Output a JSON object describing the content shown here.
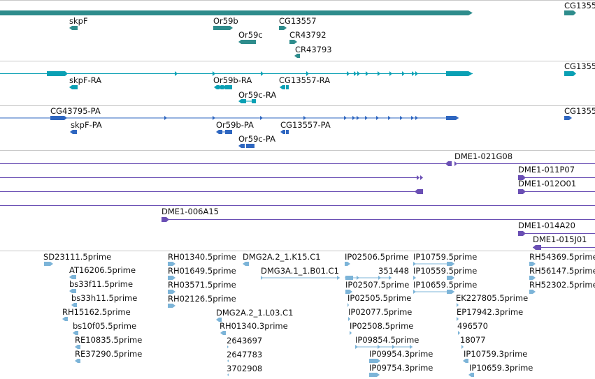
{
  "colors": {
    "gene": "#2e8c8c",
    "mrna": "#0aa0b4",
    "cds": "#2e66c0",
    "bac": "#6a4fb4",
    "est": "#7cb4d8",
    "separator": "#c0c0c0"
  },
  "tracks": {
    "genes": {
      "labels": [
        "skpF",
        "Or59b",
        "Or59c",
        "CG13557",
        "CR43792",
        "CR43793",
        "CG1355"
      ]
    },
    "mrna": {
      "labels": [
        "skpF-RA",
        "Or59b-RA",
        "Or59c-RA",
        "CG13557-RA",
        "CG1355"
      ]
    },
    "cds": {
      "labels": [
        "CG43795-PA",
        "skpF-PA",
        "Or59b-PA",
        "CG13557-PA",
        "Or59c-PA",
        "CG1355"
      ]
    },
    "bac": {
      "labels": [
        "DME1-021G08",
        "DME1-011P07",
        "DME1-012O01",
        "DME1-006A15",
        "DME1-014A20",
        "DME1-015J01"
      ]
    },
    "est": {
      "labels": [
        "SD23111.5prime",
        "AT16206.5prime",
        "bs33f11.5prime",
        "bs33h11.5prime",
        "RH15162.5prime",
        "bs10f05.5prime",
        "RE10835.5prime",
        "RE37290.5prime",
        "RH01340.5prime",
        "RH01649.5prime",
        "RH03571.5prime",
        "RH02126.5prime",
        "DMG2A.2_1.K15.C1",
        "DMG3A.1_1.B01.C1",
        "DMG2A.2_1.L03.C1",
        "RH01340.3prime",
        "2643697",
        "2647783",
        "3702908",
        "IP02506.5prime",
        "351448",
        "IP02507.5prime",
        "IP02505.5prime",
        "IP02077.5prime",
        "IP02508.5prime",
        "IP09854.5prime",
        "IP09954.3prime",
        "IP09754.3prime",
        "IP10759.5prime",
        "IP10559.5prime",
        "IP10659.5prime",
        "EK227805.5prime",
        "EP17942.3prime",
        "496570",
        "18077",
        "IP10759.3prime",
        "IP10659.3prime",
        "RH54369.5prime",
        "RH56147.5prime",
        "RH52302.5prime"
      ]
    }
  }
}
